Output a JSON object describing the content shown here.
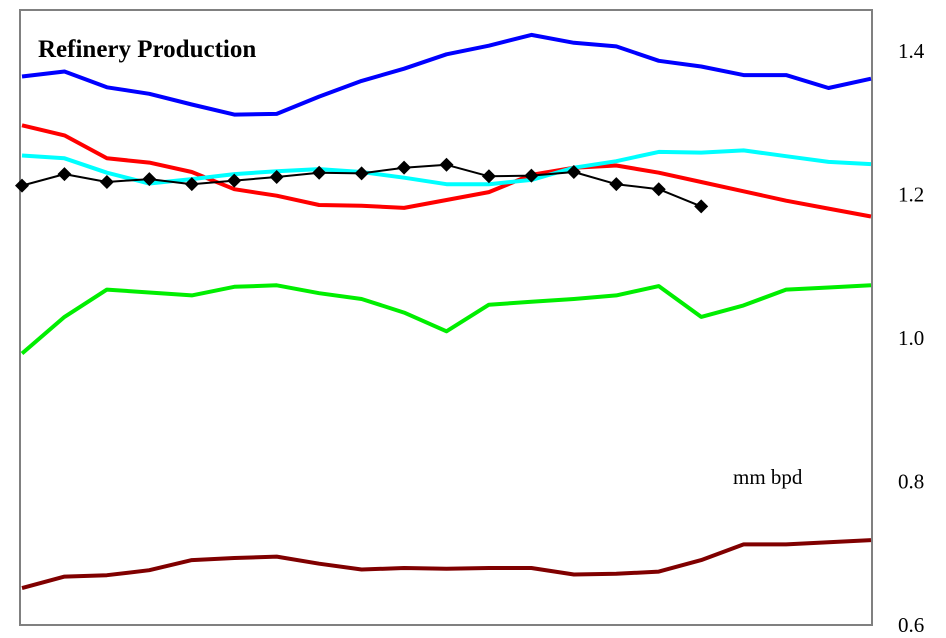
{
  "chart_data": {
    "type": "line",
    "title": "Refinery Production",
    "unit_label": "mm bpd",
    "ylim": [
      0.6,
      1.45
    ],
    "y_ticks": [
      "1.4",
      "1.2",
      "1.0",
      "0.8",
      "0.6"
    ],
    "y_tick_values": [
      1.4,
      1.2,
      1.0,
      0.8,
      0.6
    ],
    "y_axis_side": "right",
    "grid": false,
    "legend": "none",
    "x_count": 21,
    "series": [
      {
        "color": "#0000ff",
        "marker": "none",
        "values": [
          1.363,
          1.37,
          1.348,
          1.339,
          1.324,
          1.31,
          1.311,
          1.335,
          1.357,
          1.374,
          1.394,
          1.406,
          1.421,
          1.41,
          1.405,
          1.385,
          1.377,
          1.365,
          1.365,
          1.347,
          1.36
        ]
      },
      {
        "color": "#ff0000",
        "marker": "none",
        "values": [
          1.295,
          1.281,
          1.249,
          1.243,
          1.23,
          1.206,
          1.197,
          1.184,
          1.183,
          1.18,
          1.191,
          1.202,
          1.226,
          1.236,
          1.239,
          1.229,
          1.216,
          1.203,
          1.19,
          1.179,
          1.168
        ]
      },
      {
        "color": "#00ffff",
        "marker": "none",
        "values": [
          1.253,
          1.249,
          1.229,
          1.214,
          1.22,
          1.227,
          1.231,
          1.234,
          1.23,
          1.222,
          1.213,
          1.213,
          1.219,
          1.236,
          1.245,
          1.258,
          1.257,
          1.26,
          1.252,
          1.244,
          1.241
        ]
      },
      {
        "color": "#000000",
        "marker": "diamond",
        "values": [
          1.211,
          1.227,
          1.216,
          1.22,
          1.213,
          1.218,
          1.223,
          1.229,
          1.228,
          1.236,
          1.24,
          1.224,
          1.225,
          1.23,
          1.213,
          1.206,
          1.182
        ]
      },
      {
        "color": "#00ee00",
        "marker": "none",
        "values": [
          0.977,
          1.028,
          1.066,
          1.062,
          1.058,
          1.07,
          1.072,
          1.061,
          1.053,
          1.034,
          1.008,
          1.045,
          1.049,
          1.053,
          1.058,
          1.071,
          1.028,
          1.044,
          1.066,
          1.069,
          1.072
        ]
      },
      {
        "color": "#800000",
        "marker": "none",
        "values": [
          0.65,
          0.666,
          0.668,
          0.675,
          0.689,
          0.692,
          0.694,
          0.684,
          0.676,
          0.678,
          0.677,
          0.678,
          0.678,
          0.669,
          0.67,
          0.673,
          0.689,
          0.711,
          0.711,
          0.714,
          0.717
        ]
      }
    ]
  }
}
